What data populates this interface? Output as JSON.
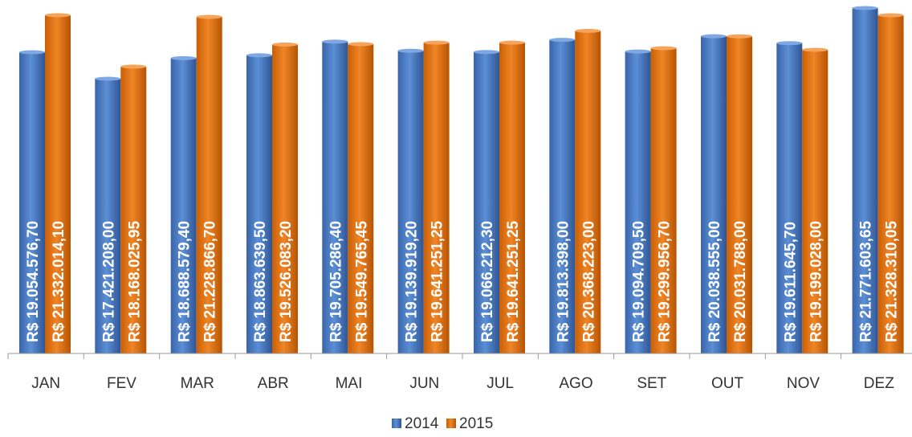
{
  "chart_data": {
    "type": "bar",
    "categories": [
      "JAN",
      "FEV",
      "MAR",
      "ABR",
      "MAI",
      "JUN",
      "JUL",
      "AGO",
      "SET",
      "OUT",
      "NOV",
      "DEZ"
    ],
    "series": [
      {
        "name": "2014",
        "color": "#4A7CC7",
        "values": [
          19054576.7,
          17421208.0,
          18688579.4,
          18863639.5,
          19705286.4,
          19139919.2,
          19066212.3,
          19813398.0,
          19094709.5,
          20038555.0,
          19611645.7,
          21771603.65
        ],
        "labels": [
          "R$ 19.054.576,70",
          "R$ 17.421.208,00",
          "R$ 18.688.579,40",
          "R$ 18.863.639,50",
          "R$ 19.705.286,40",
          "R$ 19.139.919,20",
          "R$ 19.066.212,30",
          "R$ 19.813.398,00",
          "R$ 19.094.709,50",
          "R$ 20.038.555,00",
          "R$ 19.611.645,70",
          "R$ 21.771.603,65"
        ]
      },
      {
        "name": "2015",
        "color": "#E8720C",
        "values": [
          21332014.1,
          18168025.95,
          21228866.7,
          19526083.2,
          19549765.45,
          19641251.25,
          19641251.25,
          20368223.0,
          19299956.7,
          20031788.0,
          19199028.0,
          21328310.05
        ],
        "labels": [
          "R$ 21.332.014,10",
          "R$ 18.168.025,95",
          "R$ 21.228.866,70",
          "R$ 19.526.083,20",
          "R$ 19.549.765,45",
          "R$ 19.641.251,25",
          "R$ 19.641.251,25",
          "R$ 20.368.223,00",
          "R$ 19.299.956,70",
          "R$ 20.031.788,00",
          "R$ 19.199.028,00",
          "R$ 21.328.310,05"
        ]
      }
    ],
    "legend": [
      "2014",
      "2015"
    ],
    "legend_position": "bottom",
    "title": "",
    "xlabel": "",
    "ylabel": "",
    "grid": false
  }
}
